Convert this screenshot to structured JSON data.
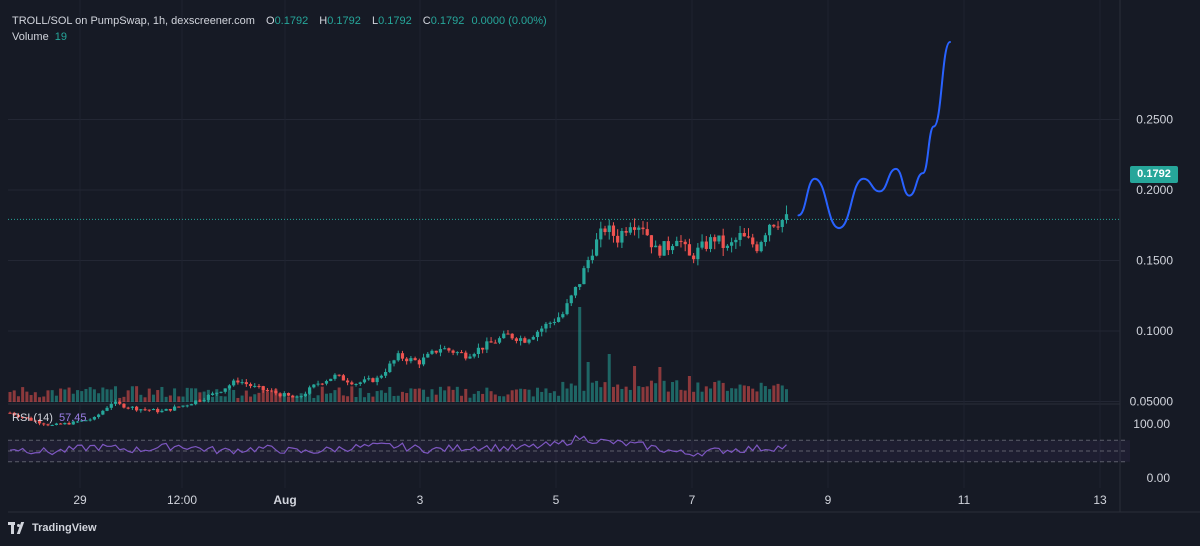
{
  "header": {
    "symbol": "TROLL/SOL on PumpSwap, 1h, dexscreener.com",
    "open_label": "O",
    "open": "0.1792",
    "high_label": "H",
    "high": "0.1792",
    "low_label": "L",
    "low": "0.1792",
    "close_label": "C",
    "close": "0.1792",
    "change": "0.0000 (0.00%)",
    "volume_label": "Volume",
    "volume_value": "19"
  },
  "rsi": {
    "label": "RSI (14)",
    "value": "57.45"
  },
  "current_price_label": "0.1792",
  "brand": "TradingView",
  "colors": {
    "background": "#161a25",
    "up": "#26a69a",
    "down": "#ef5350",
    "rsi": "#7e57c2",
    "projection": "#2962ff"
  },
  "chart_data": {
    "type": "candlestick",
    "title": "TROLL/SOL on PumpSwap, 1h, dexscreener.com",
    "price_axis": {
      "ticks": [
        "0.2500",
        "0.2000",
        "0.1500",
        "0.1000",
        "0.05000"
      ],
      "tick_values": [
        0.25,
        0.2,
        0.15,
        0.1,
        0.05
      ],
      "ylim": [
        0.0,
        0.3
      ]
    },
    "time_axis": {
      "ticks": [
        "29",
        "12:00",
        "Aug",
        "3",
        "5",
        "7",
        "9",
        "11",
        "13"
      ]
    },
    "rsi_axis": {
      "ticks": [
        "100.00",
        "0.00"
      ],
      "tick_values": [
        100,
        0
      ],
      "bands": [
        70,
        50,
        30
      ]
    },
    "last_price": 0.1792,
    "price_path": [
      [
        0,
        0.042
      ],
      [
        5,
        0.037
      ],
      [
        10,
        0.033
      ],
      [
        15,
        0.035
      ],
      [
        20,
        0.038
      ],
      [
        24,
        0.049
      ],
      [
        30,
        0.045
      ],
      [
        36,
        0.043
      ],
      [
        42,
        0.048
      ],
      [
        48,
        0.055
      ],
      [
        54,
        0.065
      ],
      [
        58,
        0.06
      ],
      [
        63,
        0.056
      ],
      [
        68,
        0.052
      ],
      [
        73,
        0.063
      ],
      [
        77,
        0.068
      ],
      [
        82,
        0.063
      ],
      [
        87,
        0.066
      ],
      [
        92,
        0.082
      ],
      [
        97,
        0.078
      ],
      [
        102,
        0.088
      ],
      [
        108,
        0.083
      ],
      [
        113,
        0.09
      ],
      [
        118,
        0.097
      ],
      [
        122,
        0.094
      ],
      [
        126,
        0.102
      ],
      [
        131,
        0.112
      ],
      [
        135,
        0.135
      ],
      [
        138,
        0.158
      ],
      [
        141,
        0.173
      ],
      [
        144,
        0.166
      ],
      [
        147,
        0.178
      ],
      [
        150,
        0.175
      ],
      [
        153,
        0.157
      ],
      [
        156,
        0.16
      ],
      [
        158,
        0.168
      ],
      [
        161,
        0.152
      ],
      [
        164,
        0.159
      ],
      [
        167,
        0.166
      ],
      [
        170,
        0.158
      ],
      [
        173,
        0.167
      ],
      [
        177,
        0.16
      ],
      [
        180,
        0.177
      ],
      [
        184,
        0.1792
      ]
    ],
    "volume_spikes": [
      [
        135,
        95
      ],
      [
        137,
        40
      ],
      [
        142,
        48
      ],
      [
        148,
        36
      ],
      [
        154,
        35
      ],
      [
        161,
        26
      ],
      [
        167,
        20
      ]
    ],
    "rsi_path": [
      [
        0,
        55
      ],
      [
        10,
        48
      ],
      [
        20,
        58
      ],
      [
        30,
        52
      ],
      [
        40,
        60
      ],
      [
        50,
        50
      ],
      [
        60,
        55
      ],
      [
        70,
        48
      ],
      [
        80,
        56
      ],
      [
        90,
        60
      ],
      [
        100,
        52
      ],
      [
        110,
        58
      ],
      [
        120,
        55
      ],
      [
        130,
        62
      ],
      [
        135,
        75
      ],
      [
        140,
        68
      ],
      [
        150,
        60
      ],
      [
        160,
        45
      ],
      [
        170,
        52
      ],
      [
        184,
        57.45
      ]
    ],
    "projection": [
      [
        0,
        0.182
      ],
      [
        12,
        0.208
      ],
      [
        30,
        0.173
      ],
      [
        48,
        0.208
      ],
      [
        60,
        0.199
      ],
      [
        72,
        0.215
      ],
      [
        82,
        0.196
      ],
      [
        92,
        0.212
      ],
      [
        100,
        0.245
      ],
      [
        112,
        0.305
      ]
    ]
  }
}
